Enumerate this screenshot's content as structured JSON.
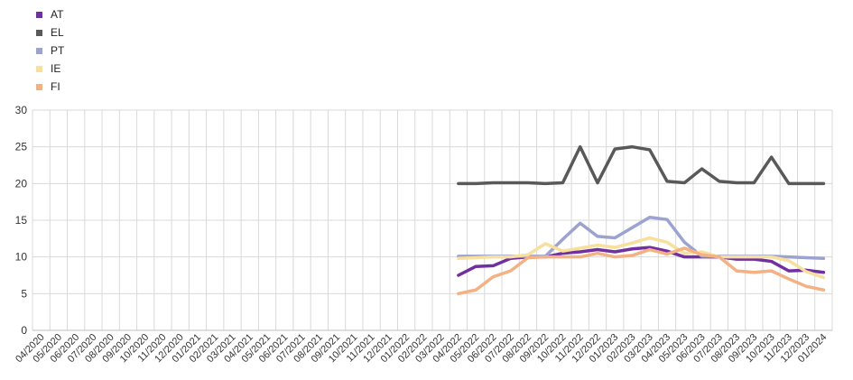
{
  "chart_data": {
    "type": "line",
    "categories": [
      "04/2020",
      "05/2020",
      "06/2020",
      "07/2020",
      "08/2020",
      "09/2020",
      "10/2020",
      "11/2020",
      "12/2020",
      "01/2021",
      "02/2021",
      "03/2021",
      "04/2021",
      "05/2021",
      "06/2021",
      "07/2021",
      "08/2021",
      "09/2021",
      "10/2021",
      "11/2021",
      "12/2021",
      "01/2022",
      "02/2022",
      "03/2022",
      "04/2022",
      "05/2022",
      "06/2022",
      "07/2022",
      "08/2022",
      "09/2022",
      "10/2022",
      "11/2022",
      "12/2022",
      "01/2023",
      "02/2023",
      "03/2023",
      "04/2023",
      "05/2023",
      "06/2023",
      "07/2023",
      "08/2023",
      "09/2023",
      "10/2023",
      "11/2023",
      "12/2023",
      "01/2024"
    ],
    "ylim": [
      0,
      30
    ],
    "yticks": [
      0,
      5,
      10,
      15,
      20,
      25,
      30
    ],
    "grid": true,
    "legend_position": "top-left",
    "series": [
      {
        "name": "AT",
        "color": "#7030a0",
        "values": [
          null,
          null,
          null,
          null,
          null,
          null,
          null,
          null,
          null,
          null,
          null,
          null,
          null,
          null,
          null,
          null,
          null,
          null,
          null,
          null,
          null,
          null,
          null,
          null,
          7.5,
          8.7,
          8.8,
          9.8,
          10.0,
          10.0,
          10.5,
          10.7,
          11.0,
          10.7,
          11.1,
          11.3,
          10.8,
          10.0,
          10.0,
          10.0,
          9.7,
          9.7,
          9.4,
          8.1,
          8.2,
          7.9
        ]
      },
      {
        "name": "EL",
        "color": "#595959",
        "values": [
          null,
          null,
          null,
          null,
          null,
          null,
          null,
          null,
          null,
          null,
          null,
          null,
          null,
          null,
          null,
          null,
          null,
          null,
          null,
          null,
          null,
          null,
          null,
          null,
          20.0,
          20.0,
          20.1,
          20.1,
          20.1,
          20.0,
          20.1,
          25.0,
          20.1,
          24.7,
          25.0,
          24.6,
          20.3,
          20.1,
          22.0,
          20.3,
          20.1,
          20.1,
          23.6,
          20.0,
          20.0,
          20.0
        ]
      },
      {
        "name": "PT",
        "color": "#9ca3d1",
        "values": [
          null,
          null,
          null,
          null,
          null,
          null,
          null,
          null,
          null,
          null,
          null,
          null,
          null,
          null,
          null,
          null,
          null,
          null,
          null,
          null,
          null,
          null,
          null,
          null,
          10.1,
          10.1,
          10.1,
          10.1,
          10.1,
          10.1,
          12.4,
          14.6,
          12.8,
          12.6,
          14.0,
          15.4,
          15.1,
          12.0,
          10.1,
          10.1,
          10.1,
          10.1,
          10.1,
          10.0,
          9.9,
          9.8
        ]
      },
      {
        "name": "IE",
        "color": "#f7e09e",
        "values": [
          null,
          null,
          null,
          null,
          null,
          null,
          null,
          null,
          null,
          null,
          null,
          null,
          null,
          null,
          null,
          null,
          null,
          null,
          null,
          null,
          null,
          null,
          null,
          null,
          9.8,
          9.9,
          10.0,
          10.0,
          10.3,
          11.8,
          10.8,
          11.2,
          11.6,
          11.3,
          11.9,
          12.6,
          12.0,
          10.5,
          10.7,
          10.0,
          10.0,
          10.0,
          10.0,
          9.5,
          8.0,
          7.2
        ]
      },
      {
        "name": "FI",
        "color": "#f4b183",
        "values": [
          null,
          null,
          null,
          null,
          null,
          null,
          null,
          null,
          null,
          null,
          null,
          null,
          null,
          null,
          null,
          null,
          null,
          null,
          null,
          null,
          null,
          null,
          null,
          null,
          5.0,
          5.5,
          7.3,
          8.1,
          9.9,
          10.0,
          10.0,
          10.0,
          10.5,
          10.0,
          10.2,
          11.0,
          10.4,
          11.2,
          10.3,
          10.0,
          8.1,
          7.9,
          8.1,
          7.0,
          6.0,
          5.5
        ]
      }
    ]
  }
}
